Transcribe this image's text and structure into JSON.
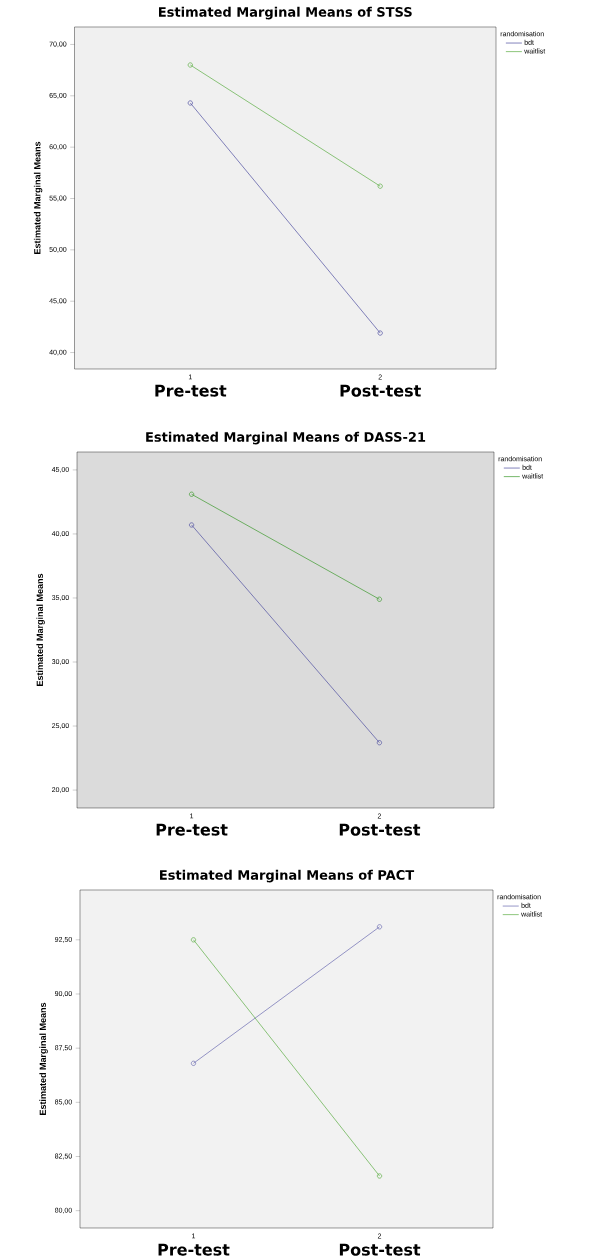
{
  "chart_data": [
    {
      "type": "line",
      "title": "Estimated Marginal Means of STSS",
      "ylabel": "Estimated Marginal Means",
      "legend_title": "randomisation",
      "legend": "top right",
      "marker": "circle",
      "line_style": "solid",
      "grid": false,
      "categories": [
        "Pre-test",
        "Post-test"
      ],
      "annotations": [
        "1",
        "2"
      ],
      "ylim": [
        38.4,
        71.7
      ],
      "yticks": [
        {
          "value": 40,
          "label": "40,00"
        },
        {
          "value": 45,
          "label": "45,00"
        },
        {
          "value": 50,
          "label": "50,00"
        },
        {
          "value": 55,
          "label": "55,00"
        },
        {
          "value": 60,
          "label": "60,00"
        },
        {
          "value": 65,
          "label": "65,00"
        },
        {
          "value": 70,
          "label": "70,00"
        }
      ],
      "series": [
        {
          "name": "bdt",
          "color": "#4f4fa0",
          "values": [
            64.3,
            41.9
          ]
        },
        {
          "name": "waitlist",
          "color": "#5cae44",
          "values": [
            68.0,
            56.2
          ]
        }
      ]
    },
    {
      "type": "line",
      "title": "Estimated Marginal Means of DASS-21",
      "ylabel": "Estimated Marginal Means",
      "legend_title": "randomisation",
      "legend": "top right",
      "marker": "circle",
      "line_style": "solid",
      "grid": false,
      "categories": [
        "Pre-test",
        "Post-test"
      ],
      "annotations": [
        "1",
        "2"
      ],
      "ylim": [
        18.6,
        46.4
      ],
      "yticks": [
        {
          "value": 20,
          "label": "20,00"
        },
        {
          "value": 25,
          "label": "25,00"
        },
        {
          "value": 30,
          "label": "30,00"
        },
        {
          "value": 35,
          "label": "35,00"
        },
        {
          "value": 40,
          "label": "40,00"
        },
        {
          "value": 45,
          "label": "45,00"
        }
      ],
      "series": [
        {
          "name": "bdt",
          "color": "#4f4fa0",
          "values": [
            40.7,
            23.7
          ]
        },
        {
          "name": "waitlist",
          "color": "#3c9a2c",
          "values": [
            43.1,
            34.9
          ]
        }
      ]
    },
    {
      "type": "line",
      "title": "Estimated Marginal Means of PACT",
      "ylabel": "Estimated Marginal Means",
      "legend_title": "randomisation",
      "legend": "top right",
      "marker": "circle",
      "line_style": "solid",
      "grid": false,
      "categories": [
        "Pre-test",
        "Post-test"
      ],
      "annotations": [
        "1",
        "2"
      ],
      "ylim": [
        79.2,
        94.8
      ],
      "yticks": [
        {
          "value": 80,
          "label": "80,00"
        },
        {
          "value": 82.5,
          "label": "82,50"
        },
        {
          "value": 85,
          "label": "85,00"
        },
        {
          "value": 87.5,
          "label": "87,50"
        },
        {
          "value": 90,
          "label": "90,00"
        },
        {
          "value": 92.5,
          "label": "92,50"
        }
      ],
      "series": [
        {
          "name": "bdt",
          "color": "#6a6ab0",
          "values": [
            86.8,
            93.1
          ]
        },
        {
          "name": "waitlist",
          "color": "#5cae44",
          "values": [
            92.5,
            81.6
          ]
        }
      ]
    }
  ]
}
